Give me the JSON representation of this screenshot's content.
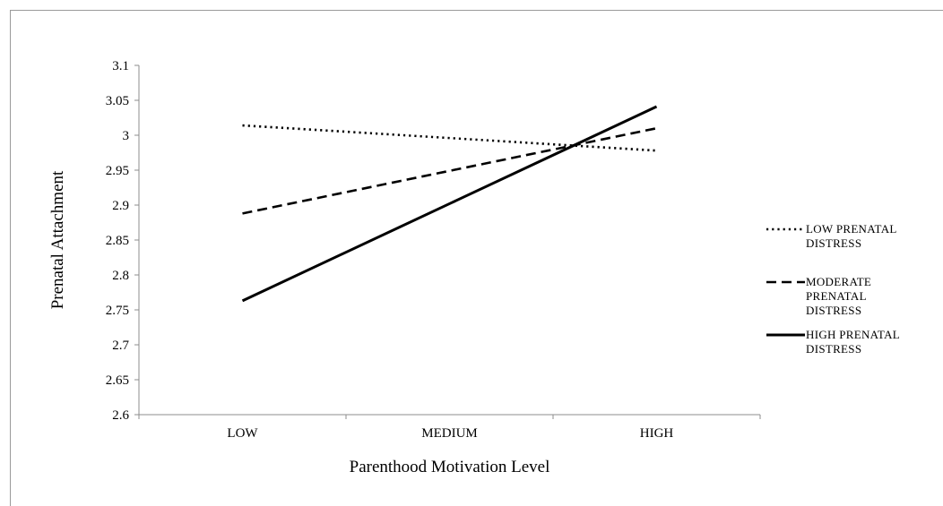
{
  "chart_data": {
    "type": "line",
    "xlabel": "Parenthood Motivation Level",
    "ylabel": "Prenatal Attachment",
    "categories": [
      "LOW",
      "MEDIUM",
      "HIGH"
    ],
    "ylim": [
      2.6,
      3.1
    ],
    "yticks": [
      "2.6",
      "2.65",
      "2.7",
      "2.75",
      "2.8",
      "2.85",
      "2.9",
      "2.95",
      "3",
      "3.05",
      "3.1"
    ],
    "grid": false,
    "legend_position": "right",
    "series": [
      {
        "name_lines": [
          "LOW PRENATAL",
          "DISTRESS"
        ],
        "style": "dotted",
        "values": [
          3.014,
          2.996,
          2.978
        ]
      },
      {
        "name_lines": [
          "MODERATE",
          "PRENATAL",
          "DISTRESS"
        ],
        "style": "dashed",
        "values": [
          2.888,
          2.949,
          3.01
        ]
      },
      {
        "name_lines": [
          "HIGH PRENATAL",
          "DISTRESS"
        ],
        "style": "solid",
        "values": [
          2.763,
          2.902,
          3.041
        ]
      }
    ],
    "line_color": "#000000",
    "axis_color": "#8c8c8c"
  }
}
